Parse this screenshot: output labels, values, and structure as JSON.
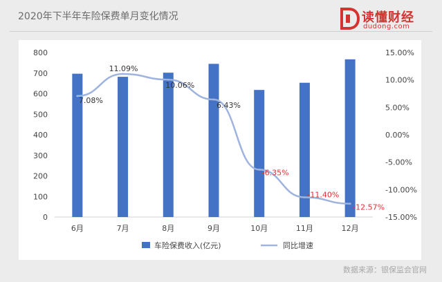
{
  "header": {
    "title": "2020年下半年车险保费单月变化情况"
  },
  "logo": {
    "text": "读懂财经",
    "sub": "dudong.com"
  },
  "source": "数据来源：银保监会官网",
  "colors": {
    "bar": "#4472c4",
    "line": "#9fb3df",
    "negative_label": "#e03131",
    "positive_label": "#333333"
  },
  "chart_data": {
    "type": "bar+line",
    "categories": [
      "6月",
      "7月",
      "8月",
      "9月",
      "10月",
      "11月",
      "12月"
    ],
    "series": [
      {
        "name": "车险保费收入(亿元)",
        "type": "bar",
        "axis": "left",
        "values": [
          697,
          682,
          702,
          745,
          618,
          653,
          767
        ]
      },
      {
        "name": "同比增速",
        "type": "line",
        "axis": "right",
        "values": [
          7.08,
          11.09,
          10.06,
          6.43,
          -6.35,
          -11.4,
          -12.57
        ],
        "labels": [
          "7.08%",
          "11.09%",
          "10.06%",
          "6.43%",
          "-6.35%",
          "-11.40%",
          "-12.57%"
        ]
      }
    ],
    "left_axis": {
      "ylim": [
        0,
        800
      ],
      "ticks": [
        "0",
        "100",
        "200",
        "300",
        "400",
        "500",
        "600",
        "700",
        "800"
      ]
    },
    "right_axis": {
      "ylim": [
        -15,
        15
      ],
      "ticks": [
        "-15.00%",
        "-10.00%",
        "-5.00%",
        "0.00%",
        "5.00%",
        "10.00%",
        "15.00%"
      ]
    },
    "legend": {
      "position": "bottom",
      "items": [
        "车险保费收入(亿元)",
        "同比增速"
      ]
    },
    "grid": false
  }
}
